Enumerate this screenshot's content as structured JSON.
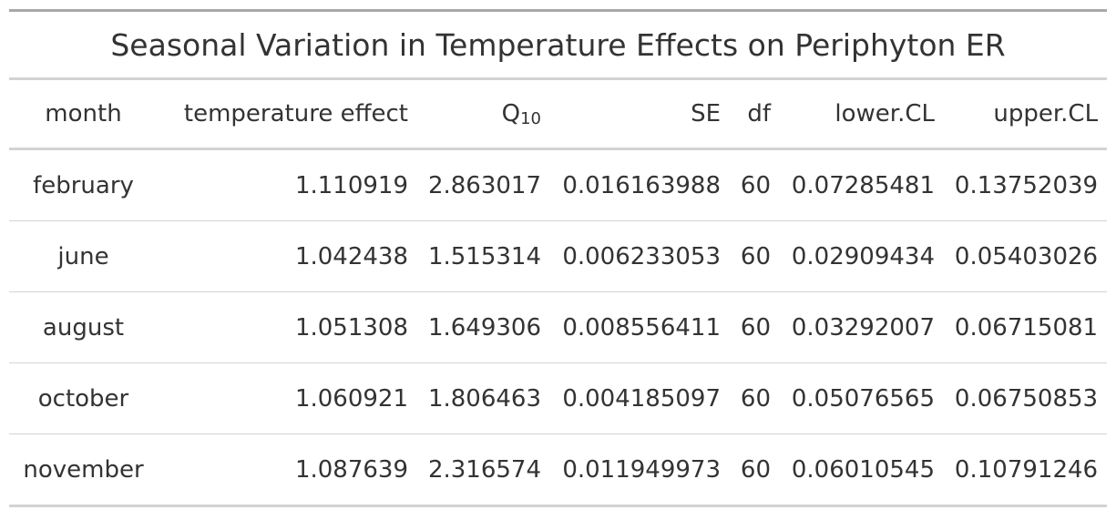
{
  "table": {
    "title": "Seasonal Variation in Temperature Effects on Periphyton ER",
    "columns": {
      "month": "month",
      "temperature_effect": "temperature effect",
      "q10_base": "Q",
      "q10_sub": "10",
      "se": "SE",
      "df": "df",
      "lower_cl": "lower.CL",
      "upper_cl": "upper.CL"
    },
    "rows": [
      {
        "month": "february",
        "temperature_effect": "1.110919",
        "q10": "2.863017",
        "se": "0.016163988",
        "df": "60",
        "lower_cl": "0.07285481",
        "upper_cl": "0.13752039"
      },
      {
        "month": "june",
        "temperature_effect": "1.042438",
        "q10": "1.515314",
        "se": "0.006233053",
        "df": "60",
        "lower_cl": "0.02909434",
        "upper_cl": "0.05403026"
      },
      {
        "month": "august",
        "temperature_effect": "1.051308",
        "q10": "1.649306",
        "se": "0.008556411",
        "df": "60",
        "lower_cl": "0.03292007",
        "upper_cl": "0.06715081"
      },
      {
        "month": "october",
        "temperature_effect": "1.060921",
        "q10": "1.806463",
        "se": "0.004185097",
        "df": "60",
        "lower_cl": "0.05076565",
        "upper_cl": "0.06750853"
      },
      {
        "month": "november",
        "temperature_effect": "1.087639",
        "q10": "2.316574",
        "se": "0.011949973",
        "df": "60",
        "lower_cl": "0.06010545",
        "upper_cl": "0.10791246"
      }
    ]
  }
}
